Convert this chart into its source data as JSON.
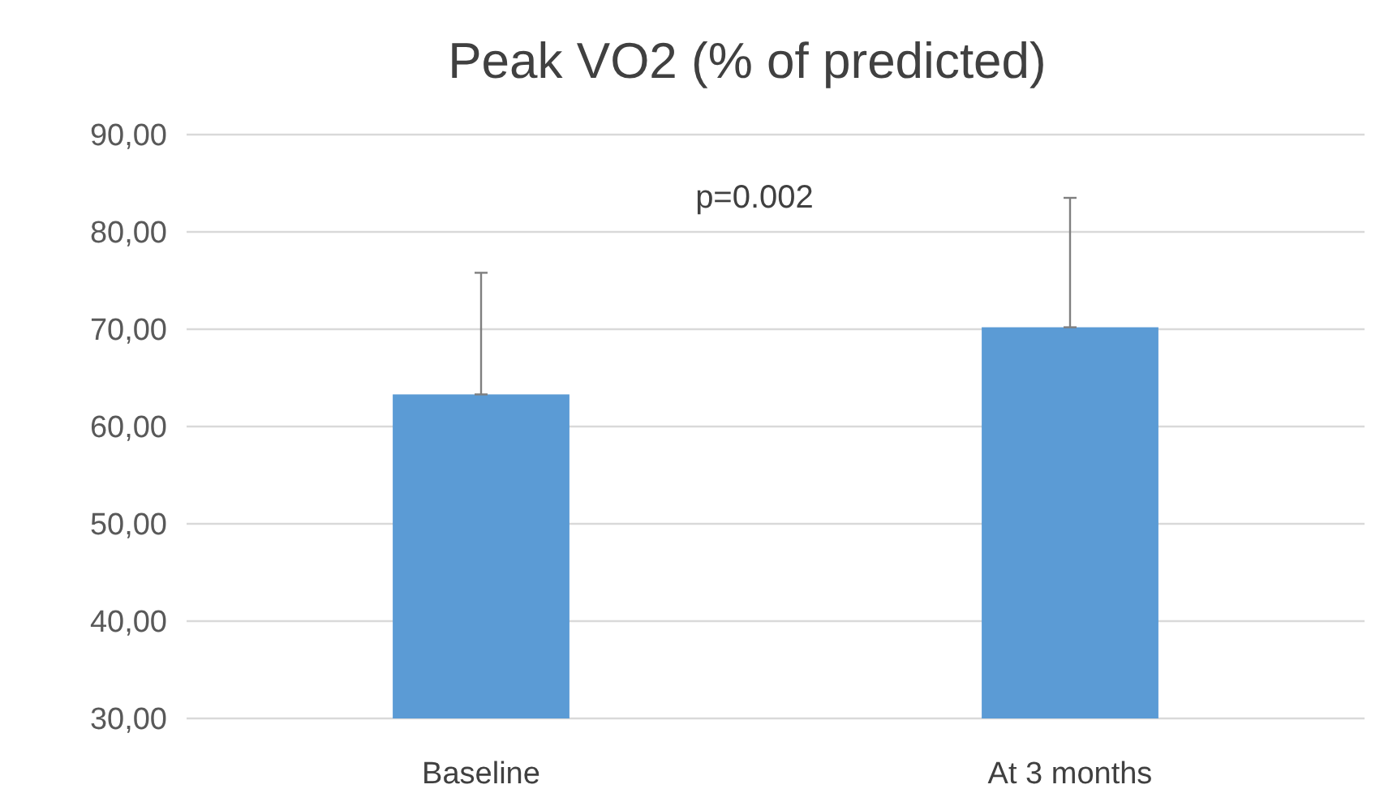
{
  "chart_data": {
    "type": "bar",
    "title": "Peak VO2 (% of predicted)",
    "categories": [
      "Baseline",
      "At 3 months"
    ],
    "values": [
      63.3,
      70.2
    ],
    "color": "#5b9bd5",
    "errors": [
      [
        63.3,
        75.8
      ],
      [
        70.2,
        83.5
      ]
    ],
    "ylim": [
      30,
      90
    ],
    "yticks": [
      {
        "value": 30,
        "label": "30,00"
      },
      {
        "value": 40,
        "label": "40,00"
      },
      {
        "value": 50,
        "label": "50,00"
      },
      {
        "value": 60,
        "label": "60,00"
      },
      {
        "value": 70,
        "label": "70,00"
      },
      {
        "value": 80,
        "label": "80,00"
      },
      {
        "value": 90,
        "label": "90,00"
      }
    ],
    "grid": "y",
    "annotations": [
      "p=0.002"
    ]
  }
}
